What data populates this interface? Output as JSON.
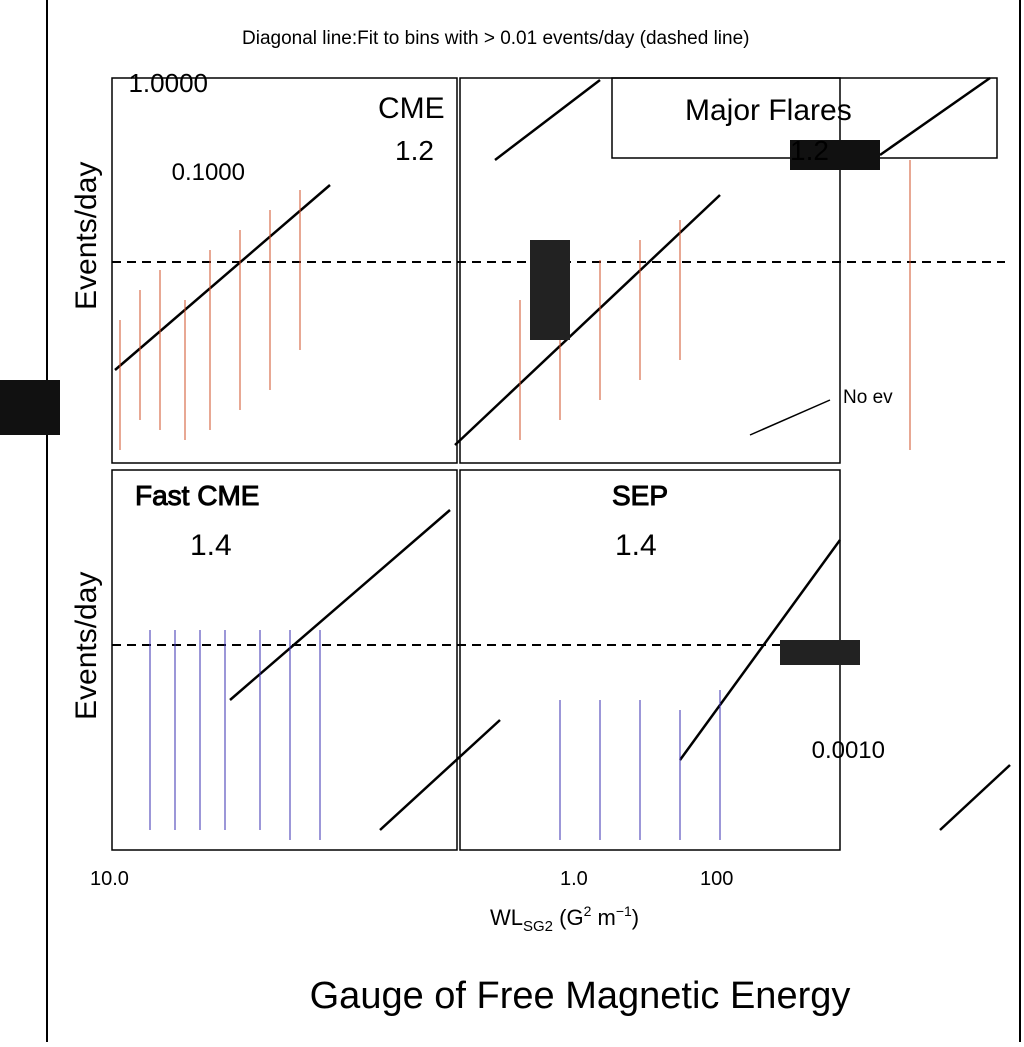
{
  "annotation": "Diagonal line:Fit to bins with > 0.01 events/day (dashed line)",
  "y_label": "Events/day",
  "y_ticks": [
    "1.0000",
    "0.1000",
    "0.0010"
  ],
  "panels": [
    {
      "title": "CME",
      "slope": "1.2"
    },
    {
      "title": "Major Flares",
      "slope": "1.2"
    },
    {
      "title": "Fast CME",
      "slope": "1.4"
    },
    {
      "title": "SEP",
      "slope": "1.4"
    }
  ],
  "note": "No ev",
  "x_ticks": [
    "10.0",
    "1.0",
    "100"
  ],
  "x_label": {
    "main": "WL",
    "sub": "SG2",
    "unit": " (G",
    "exp1": "2",
    "unit2": " m",
    "exp2": "−1",
    "close": ")"
  },
  "footer": "Gauge of Free Magnetic Energy"
}
